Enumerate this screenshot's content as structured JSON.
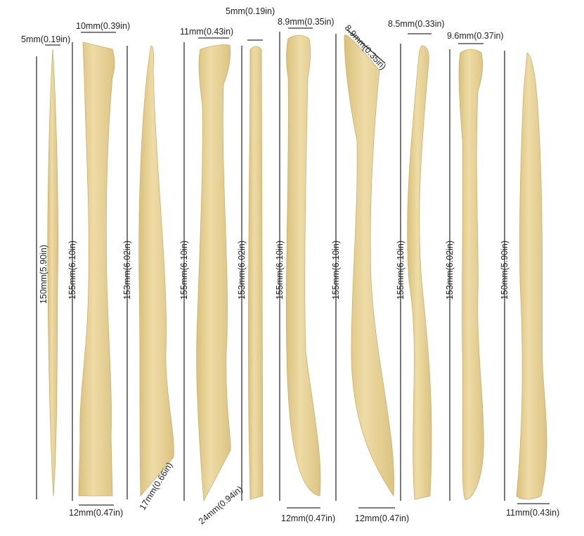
{
  "colors": {
    "tool": "#e9d59c",
    "tool_shade": "#d7bd78",
    "text": "#222222"
  },
  "tools": [
    {
      "top": "5mm(0.19in)",
      "length": "150mm(5.90in)"
    },
    {
      "top": "10mm(0.39in)",
      "length": "155mm(6.10in)",
      "bottom": "12mm(0.47in)"
    },
    {
      "length": "153mm(6.02in)",
      "bottom": "17mm(0.66in)"
    },
    {
      "top": "11mm(0.43in)",
      "length": "155mm(6.10in)",
      "bottom": "24mm(0.94in)"
    },
    {
      "top": "5mm(0.19in)",
      "length": "153mm(6.02in)"
    },
    {
      "top": "8.9mm(0.35in)",
      "length": "155mm(6.10in)",
      "bottom": "12mm(0.47in)"
    },
    {
      "top": "8.9mm(0.35in)",
      "length": "155mm(6.10in)",
      "bottom": "12mm(0.47in)"
    },
    {
      "top": "8.5mm(0.33in)",
      "length": "155mm(6.10in)"
    },
    {
      "top": "9.6mm(0.37in)",
      "length": "153mm(6.02in)"
    },
    {
      "length": "150mm(5.90in)",
      "bottom": "11mm(0.43in)"
    }
  ]
}
